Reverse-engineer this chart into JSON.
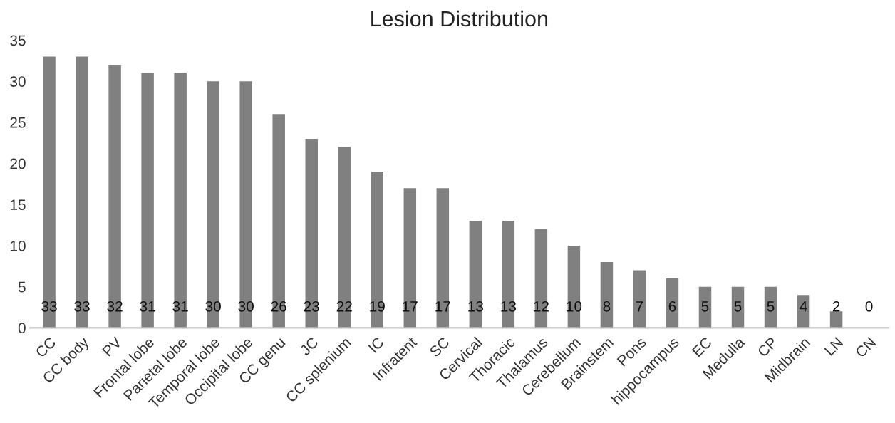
{
  "chart_data": {
    "type": "bar",
    "title": "Lesion Distribution",
    "categories": [
      "CC",
      "CC body",
      "PV",
      "Frontal lobe",
      "Parietal lobe",
      "Temporal lobe",
      "Occipital lobe",
      "CC genu",
      "JC",
      "CC splenium",
      "IC",
      "Infratent",
      "SC",
      "Cervical",
      "Thoracic",
      "Thalamus",
      "Cerebellum",
      "Brainstem",
      "Pons",
      "hippocampus",
      "EC",
      "Medulla",
      "CP",
      "Midbrain",
      "LN",
      "CN"
    ],
    "values": [
      33,
      33,
      32,
      31,
      31,
      30,
      30,
      26,
      23,
      22,
      19,
      17,
      17,
      13,
      13,
      12,
      10,
      8,
      7,
      6,
      5,
      5,
      5,
      4,
      2,
      0
    ],
    "color": "#808080",
    "ylim": [
      0,
      35
    ],
    "yticks": [
      0,
      5,
      10,
      15,
      20,
      25,
      30,
      35
    ],
    "grid": false,
    "legend": false,
    "data_labels": true
  }
}
